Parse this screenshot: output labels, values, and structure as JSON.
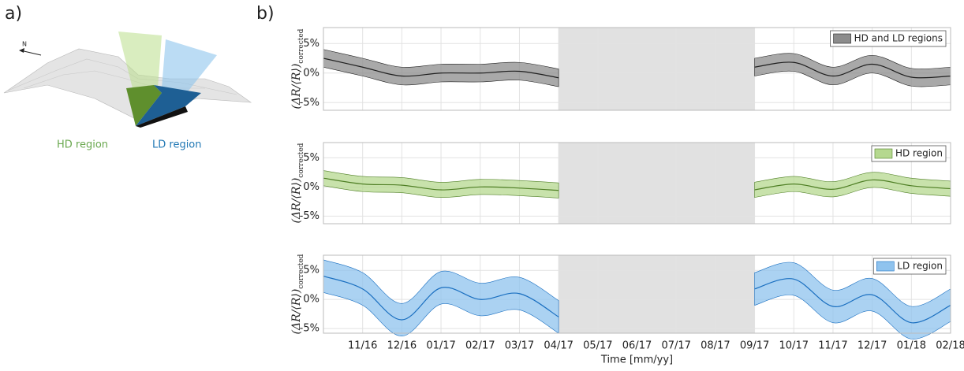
{
  "panel_labels": [
    "a)",
    "b)"
  ],
  "illustration": {
    "north": "N",
    "labels": [
      "HD region",
      "LD region"
    ]
  },
  "chart_data": [
    {
      "type": "line",
      "band": true,
      "grid": true,
      "legend": "upper right",
      "xtick_labels": false,
      "ylabel": "(ΔR/⟨R⟩)",
      "ylabel_subscript": "corrected",
      "x": [
        "10/16",
        "11/16",
        "12/16",
        "01/17",
        "02/17",
        "03/17",
        "04/17",
        "05/17",
        "06/17",
        "07/17",
        "08/17",
        "09/17",
        "10/17",
        "11/17",
        "12/17",
        "01/18",
        "02/18"
      ],
      "xlim": [
        "10/16",
        "02/18"
      ],
      "xticks": [
        "11/16",
        "12/16",
        "01/17",
        "02/17",
        "03/17",
        "04/17",
        "05/17",
        "06/17",
        "07/17",
        "08/17",
        "09/17",
        "10/17",
        "11/17",
        "12/17",
        "01/18",
        "02/18"
      ],
      "ylim": [
        -6.3,
        7.7
      ],
      "yticks": [
        {
          "value": 5,
          "label": "5%"
        },
        {
          "value": 0,
          "label": "0%"
        },
        {
          "value": -5,
          "label": "-5%"
        }
      ],
      "series": [
        {
          "name": "HD and LD regions",
          "color": "#1f1f1f",
          "fill": "#8c8c8c",
          "values": [
            2.5,
            1,
            -0.5,
            0,
            0,
            0.3,
            -0.8,
            null,
            null,
            null,
            null,
            1,
            1.8,
            -0.5,
            1.5,
            -0.7,
            -0.5
          ],
          "errors": [
            1.5,
            1.5,
            1.5,
            1.5,
            1.5,
            1.5,
            1.5,
            null,
            null,
            null,
            null,
            1.5,
            1.5,
            1.5,
            1.5,
            1.5,
            1.5
          ]
        }
      ]
    },
    {
      "type": "line",
      "band": true,
      "grid": true,
      "legend": "upper right",
      "xtick_labels": false,
      "ylabel": "(ΔR/⟨R⟩)",
      "ylabel_subscript": "corrected",
      "x": [
        "10/16",
        "11/16",
        "12/16",
        "01/17",
        "02/17",
        "03/17",
        "04/17",
        "05/17",
        "06/17",
        "07/17",
        "08/17",
        "09/17",
        "10/17",
        "11/17",
        "12/17",
        "01/18",
        "02/18"
      ],
      "xlim": [
        "10/16",
        "02/18"
      ],
      "xticks": [
        "11/16",
        "12/16",
        "01/17",
        "02/17",
        "03/17",
        "04/17",
        "05/17",
        "06/17",
        "07/17",
        "08/17",
        "09/17",
        "10/17",
        "11/17",
        "12/17",
        "01/18",
        "02/18"
      ],
      "ylim": [
        -6.3,
        7.6
      ],
      "yticks": [
        {
          "value": 5,
          "label": "5%"
        },
        {
          "value": 0,
          "label": "0%"
        },
        {
          "value": -5,
          "label": "-5%"
        }
      ],
      "series": [
        {
          "name": "HD region",
          "color": "#4f7f25",
          "fill": "#b5d88f",
          "values": [
            1.5,
            0.5,
            0.3,
            -0.5,
            0,
            -0.2,
            -0.6,
            null,
            null,
            null,
            null,
            -0.5,
            0.5,
            -0.4,
            1.2,
            0.2,
            -0.3
          ],
          "errors": [
            1.3,
            1.3,
            1.3,
            1.3,
            1.3,
            1.3,
            1.3,
            null,
            null,
            null,
            null,
            1.3,
            1.3,
            1.3,
            1.3,
            1.3,
            1.3
          ]
        }
      ]
    },
    {
      "type": "line",
      "band": true,
      "grid": true,
      "legend": "upper right",
      "xtick_labels": true,
      "xlabel": "Time [mm/yy]",
      "ylabel": "(ΔR/⟨R⟩)",
      "ylabel_subscript": "corrected",
      "x": [
        "10/16",
        "11/16",
        "12/16",
        "01/17",
        "02/17",
        "03/17",
        "04/17",
        "05/17",
        "06/17",
        "07/17",
        "08/17",
        "09/17",
        "10/17",
        "11/17",
        "12/17",
        "01/18",
        "02/18"
      ],
      "xlim": [
        "10/16",
        "02/18"
      ],
      "xticks": [
        "11/16",
        "12/16",
        "01/17",
        "02/17",
        "03/17",
        "04/17",
        "05/17",
        "06/17",
        "07/17",
        "08/17",
        "09/17",
        "10/17",
        "11/17",
        "12/17",
        "01/18",
        "02/18"
      ],
      "ylim": [
        -5.8,
        7.6
      ],
      "yticks": [
        {
          "value": 5,
          "label": "5%"
        },
        {
          "value": 0,
          "label": "0%"
        },
        {
          "value": -5,
          "label": "-5%"
        }
      ],
      "series": [
        {
          "name": "LD region",
          "color": "#1a6fc0",
          "fill": "#8fc3ee",
          "values": [
            4,
            1.8,
            -3.5,
            2,
            0,
            1,
            -3,
            null,
            null,
            null,
            null,
            1.8,
            3.5,
            -1.2,
            0.8,
            -4,
            -1
          ],
          "errors": [
            2.8,
            2.8,
            2.8,
            2.8,
            2.8,
            2.8,
            2.8,
            null,
            null,
            null,
            null,
            2.8,
            2.8,
            2.8,
            2.8,
            2.8,
            2.8
          ]
        }
      ]
    }
  ]
}
